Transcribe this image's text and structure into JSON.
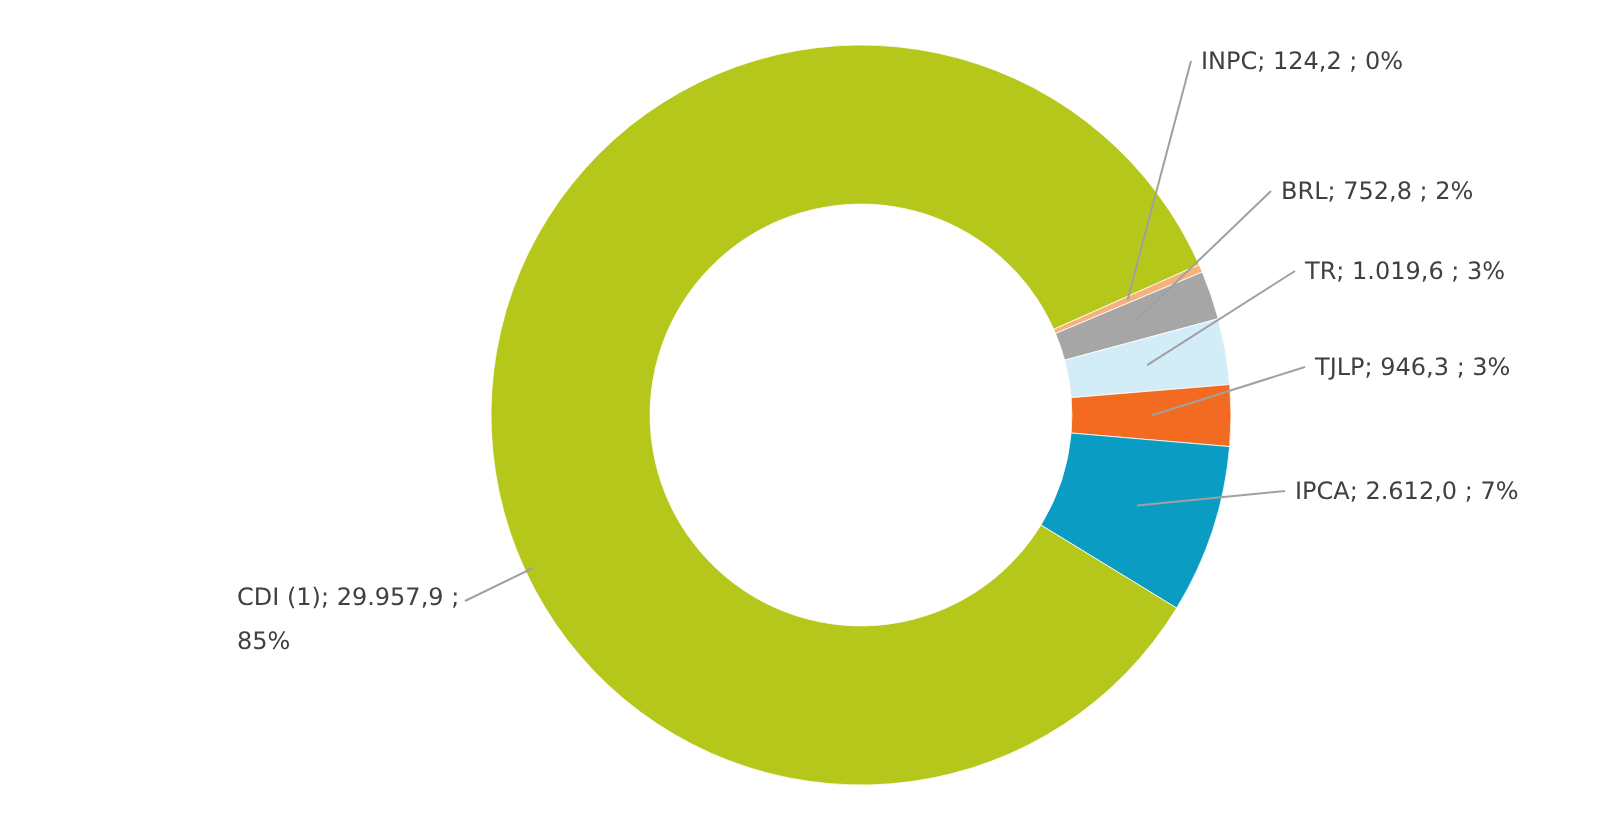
{
  "chart_data": {
    "type": "donut",
    "categories": [
      "INPC",
      "BRL",
      "TR",
      "TJLP",
      "IPCA",
      "CDI (1)"
    ],
    "values": [
      124.2,
      752.8,
      1019.6,
      946.3,
      2612.0,
      29957.9
    ],
    "colors": [
      "#f7b27a",
      "#a6a6a6",
      "#d2ecf8",
      "#f26b21",
      "#0b9cc3",
      "#b6c71b"
    ],
    "value_labels": [
      " 124,2 ; 0%",
      " 752,8 ; 2%",
      " 1.019,6 ; 3%",
      " 946,3 ; 3%",
      " 2.612,0 ; 7%",
      " 29.957,9 ;\n85%"
    ]
  }
}
